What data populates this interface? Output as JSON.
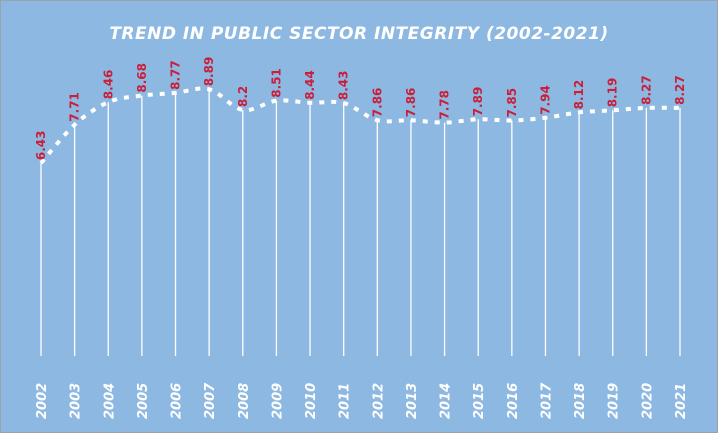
{
  "chart_data": {
    "type": "line",
    "title": "TREND IN PUBLIC SECTOR INTEGRITY (2002-2021)",
    "categories": [
      "2002",
      "2003",
      "2004",
      "2005",
      "2006",
      "2007",
      "2008",
      "2009",
      "2010",
      "2011",
      "2012",
      "2013",
      "2014",
      "2015",
      "2016",
      "2017",
      "2018",
      "2019",
      "2020",
      "2021"
    ],
    "values": [
      6.43,
      7.71,
      8.46,
      8.68,
      8.77,
      8.89,
      8.2,
      8.51,
      8.44,
      8.43,
      7.86,
      7.86,
      7.78,
      7.89,
      7.85,
      7.94,
      8.12,
      8.19,
      8.27,
      8.27
    ],
    "data_labels": [
      "6.43",
      "7.71",
      "8.46",
      "8.68",
      "8.77",
      "8.89",
      "8.2",
      "8.51",
      "8.44",
      "8.43",
      "7.86",
      "7.86",
      "7.78",
      "7.89",
      "7.85",
      "7.94",
      "8.12",
      "8.19",
      "8.27",
      "8.27"
    ],
    "xlabel": "",
    "ylabel": "",
    "ylim": [
      0,
      10
    ],
    "grid": false,
    "legend": "none",
    "line_style": "dotted",
    "colors": {
      "background": "#8db8e2",
      "line": "#ffffff",
      "drop_lines": "#ffffff",
      "data_labels": "#c8203a",
      "axis_text": "#ffffff"
    }
  }
}
